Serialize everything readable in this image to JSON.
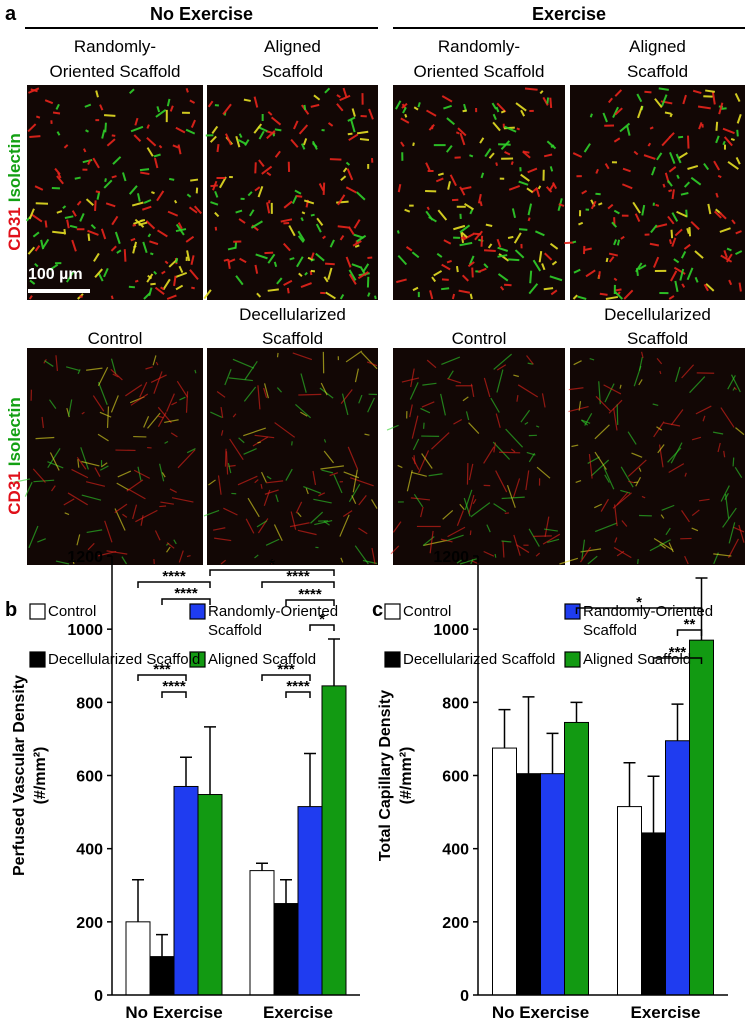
{
  "panel_a": {
    "label": "a",
    "stain": [
      {
        "text": "CD31",
        "color": "#e0101a"
      },
      {
        "text": "Isolectin",
        "color": "#12a012"
      }
    ],
    "scale_bar": "100 µm",
    "groups": [
      {
        "title": "No Exercise",
        "images": [
          {
            "title": [
              "Randomly-",
              "Oriented Scaffold"
            ]
          },
          {
            "title": [
              "Aligned",
              "Scaffold"
            ]
          },
          {
            "title": [
              "Control"
            ]
          },
          {
            "title": [
              "Decellularized",
              "Scaffold"
            ]
          }
        ]
      },
      {
        "title": "Exercise",
        "images": [
          {
            "title": [
              "Randomly-",
              "Oriented Scaffold"
            ]
          },
          {
            "title": [
              "Aligned",
              "Scaffold"
            ]
          },
          {
            "title": [
              "Control"
            ]
          },
          {
            "title": [
              "Decellularized",
              "Scaffold"
            ]
          }
        ]
      }
    ]
  },
  "chart_data": [
    {
      "type": "bar",
      "label": "b",
      "ylabel": [
        "Perfused Vascular Density",
        "(#/mm²)"
      ],
      "categories": [
        "No Exercise",
        "Exercise"
      ],
      "ylim": [
        0,
        1200
      ],
      "yticks": [
        0,
        200,
        400,
        600,
        800,
        1000,
        1200
      ],
      "series": [
        {
          "name": "Control",
          "color": "#ffffff",
          "values": [
            200,
            340
          ],
          "errors": [
            115,
            20
          ]
        },
        {
          "name": "Decellularized Scaffold",
          "color": "#000000",
          "values": [
            105,
            250
          ],
          "errors": [
            60,
            65
          ]
        },
        {
          "name": "Randomly-Oriented Scaffold",
          "color": "#1f3cf0",
          "values": [
            570,
            515
          ],
          "errors": [
            80,
            145
          ]
        },
        {
          "name": "Aligned Scaffold",
          "color": "#129a12",
          "values": [
            548,
            845
          ],
          "errors": [
            185,
            128
          ]
        }
      ],
      "significance": [
        {
          "label": "****",
          "bars": [
            [
              0,
              0
            ],
            [
              0,
              3
            ]
          ]
        },
        {
          "label": "****",
          "bars": [
            [
              0,
              1
            ],
            [
              0,
              3
            ]
          ]
        },
        {
          "label": "***",
          "bars": [
            [
              0,
              0
            ],
            [
              0,
              2
            ]
          ]
        },
        {
          "label": "****",
          "bars": [
            [
              0,
              1
            ],
            [
              0,
              2
            ]
          ]
        },
        {
          "label": "*",
          "bars": [
            [
              0,
              3
            ],
            [
              1,
              3
            ]
          ]
        },
        {
          "label": "****",
          "bars": [
            [
              1,
              0
            ],
            [
              1,
              3
            ]
          ]
        },
        {
          "label": "****",
          "bars": [
            [
              1,
              1
            ],
            [
              1,
              3
            ]
          ]
        },
        {
          "label": "*",
          "bars": [
            [
              1,
              2
            ],
            [
              1,
              3
            ]
          ]
        },
        {
          "label": "***",
          "bars": [
            [
              1,
              0
            ],
            [
              1,
              2
            ]
          ]
        },
        {
          "label": "****",
          "bars": [
            [
              1,
              1
            ],
            [
              1,
              2
            ]
          ]
        }
      ]
    },
    {
      "type": "bar",
      "label": "c",
      "ylabel": [
        "Total Capillary Density",
        "(#/mm²)"
      ],
      "categories": [
        "No Exercise",
        "Exercise"
      ],
      "ylim": [
        0,
        1200
      ],
      "yticks": [
        0,
        200,
        400,
        600,
        800,
        1000,
        1200
      ],
      "series": [
        {
          "name": "Control",
          "color": "#ffffff",
          "values": [
            675,
            515
          ],
          "errors": [
            105,
            120
          ]
        },
        {
          "name": "Decellularized Scaffold",
          "color": "#000000",
          "values": [
            605,
            443
          ],
          "errors": [
            210,
            155
          ]
        },
        {
          "name": "Randomly-Oriented Scaffold",
          "color": "#1f3cf0",
          "values": [
            605,
            695
          ],
          "errors": [
            110,
            100
          ]
        },
        {
          "name": "Aligned Scaffold",
          "color": "#129a12",
          "values": [
            745,
            970
          ],
          "errors": [
            55,
            170
          ]
        }
      ],
      "significance": [
        {
          "label": "*",
          "bars": [
            [
              0,
              3
            ],
            [
              1,
              3
            ]
          ]
        },
        {
          "label": "**",
          "bars": [
            [
              1,
              2
            ],
            [
              1,
              3
            ]
          ]
        },
        {
          "label": "***",
          "bars": [
            [
              1,
              1
            ],
            [
              1,
              3
            ]
          ]
        }
      ]
    }
  ]
}
